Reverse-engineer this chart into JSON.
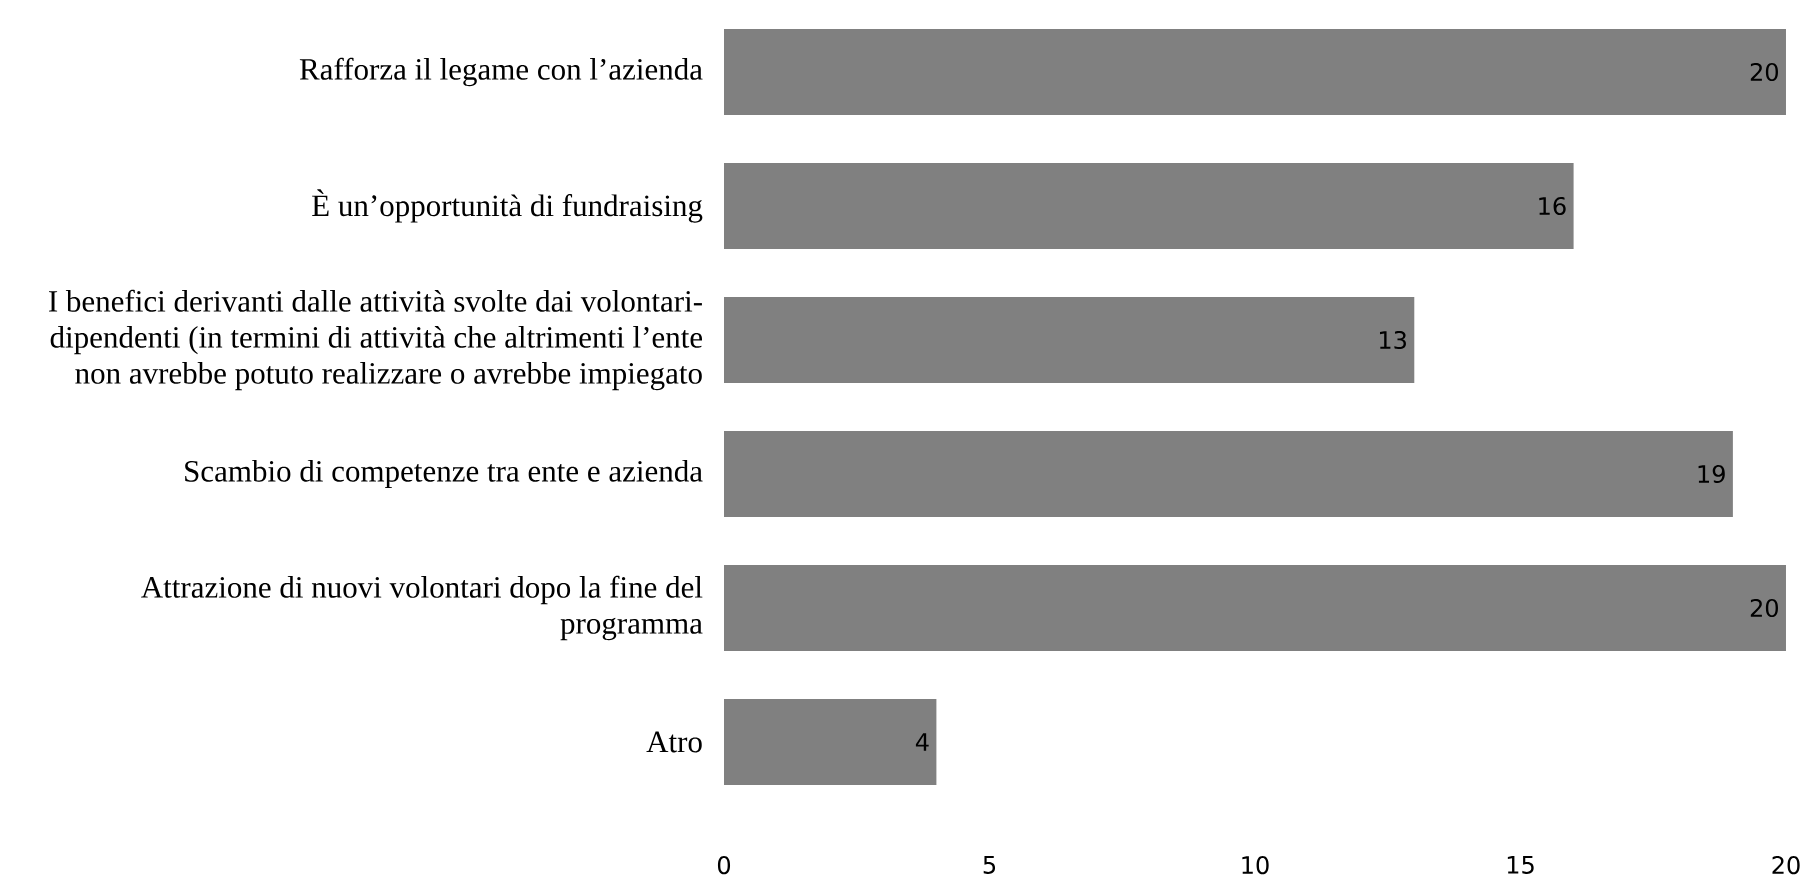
{
  "chart_data": {
    "type": "bar",
    "orientation": "horizontal",
    "categories": [
      "Rafforza il legame con l’azienda",
      "È un’opportunità di fundraising",
      "I benefici derivanti dalle attività svolte dai volontari-dipendenti (in termini di attività che altrimenti l’ente non avrebbe potuto realizzare o avrebbe impiegato",
      "Scambio di competenze tra ente e azienda",
      "Attrazione di nuovi volontari dopo la fine del programma",
      "Atro"
    ],
    "values": [
      20,
      16,
      13,
      19,
      20,
      4
    ],
    "color": "#808080",
    "data_labels": true,
    "xlim": [
      0,
      20
    ],
    "xticks": [
      0,
      5,
      10,
      15,
      20
    ]
  }
}
